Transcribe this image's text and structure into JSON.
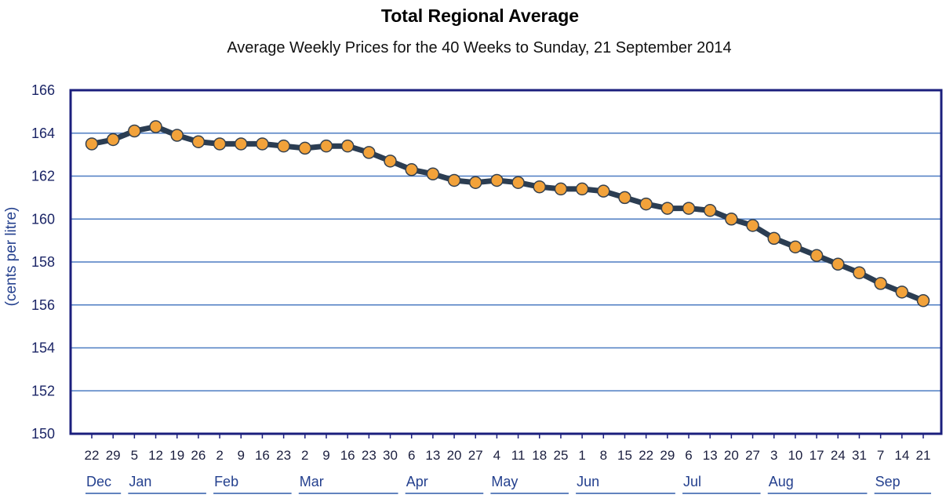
{
  "chart_data": {
    "type": "line",
    "title": "Total Regional Average",
    "subtitle": "Average Weekly Prices for the 40 Weeks to Sunday, 21 September 2014",
    "ylabel": "(cents per litre)",
    "ylim": [
      150,
      166
    ],
    "yticks": [
      150,
      152,
      154,
      156,
      158,
      160,
      162,
      164,
      166
    ],
    "grid": true,
    "legend": false,
    "months": [
      {
        "label": "Dec",
        "days": [
          "22",
          "29"
        ]
      },
      {
        "label": "Jan",
        "days": [
          "5",
          "12",
          "19",
          "26"
        ]
      },
      {
        "label": "Feb",
        "days": [
          "2",
          "9",
          "16",
          "23"
        ]
      },
      {
        "label": "Mar",
        "days": [
          "2",
          "9",
          "16",
          "23",
          "30"
        ]
      },
      {
        "label": "Apr",
        "days": [
          "6",
          "13",
          "20",
          "27"
        ]
      },
      {
        "label": "May",
        "days": [
          "4",
          "11",
          "18",
          "25"
        ]
      },
      {
        "label": "Jun",
        "days": [
          "1",
          "8",
          "15",
          "22",
          "29"
        ]
      },
      {
        "label": "Jul",
        "days": [
          "6",
          "13",
          "20",
          "27"
        ]
      },
      {
        "label": "Aug",
        "days": [
          "3",
          "10",
          "17",
          "24",
          "31"
        ]
      },
      {
        "label": "Sep",
        "days": [
          "7",
          "14",
          "21"
        ]
      }
    ],
    "series": [
      {
        "values": [
          163.5,
          163.7,
          164.1,
          164.3,
          163.9,
          163.6,
          163.5,
          163.5,
          163.5,
          163.4,
          163.3,
          163.4,
          163.4,
          163.1,
          162.7,
          162.3,
          162.1,
          161.8,
          161.7,
          161.8,
          161.7,
          161.5,
          161.4,
          161.4,
          161.3,
          161.0,
          160.7,
          160.5,
          160.5,
          160.4,
          160.0,
          159.7,
          159.1,
          158.7,
          158.3,
          157.9,
          157.5,
          157.0,
          156.6,
          156.2
        ]
      }
    ],
    "colors": {
      "line": "#2b3d52",
      "marker": "#f2a23a",
      "marker_outline": "#33404f",
      "grid": "#4d7cc2",
      "frame": "#1b1f7d",
      "tick_text": "#1b2566",
      "day_text": "#1b1f3f",
      "month_text": "#24408e",
      "month_underline": "#2f5aa8"
    }
  }
}
